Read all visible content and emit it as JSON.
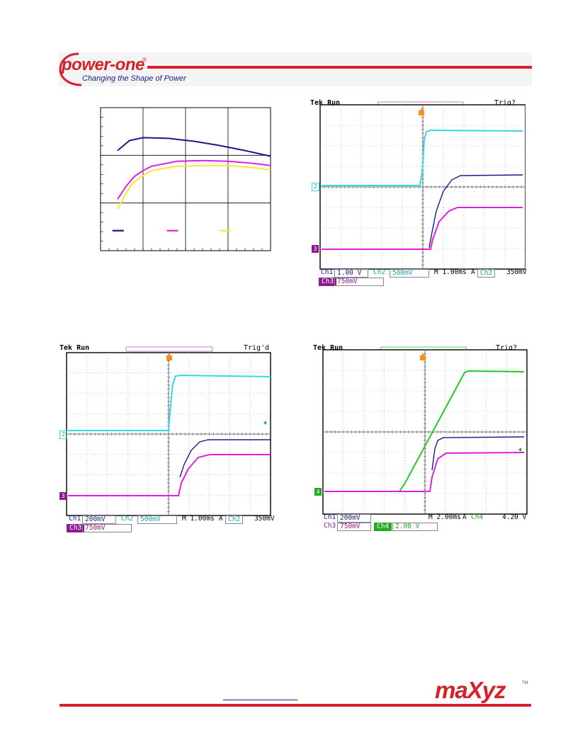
{
  "header": {
    "brand": "power-one",
    "registered": "®",
    "tagline": "Changing the Shape of Power"
  },
  "colors": {
    "red": "#d6202a",
    "ch1": "#1a1a8c",
    "ch2": "#33d9e6",
    "ch3": "#e020e0",
    "ch4": "#22cc22",
    "yellow": "#f4ea2a",
    "trigger": "#ff8c1a"
  },
  "chart_data": {
    "type": "line",
    "title": "",
    "xlabel": "",
    "ylabel": "",
    "xlim": [
      0,
      100
    ],
    "ylim": [
      0,
      100
    ],
    "grid": true,
    "series": [
      {
        "color": "#1a1a8c",
        "x": [
          10,
          17,
          25,
          40,
          55,
          70,
          85,
          100
        ],
        "y": [
          70,
          77,
          79,
          78.5,
          76.5,
          73.5,
          70,
          66
        ]
      },
      {
        "color": "#e020e0",
        "x": [
          10,
          15,
          20,
          25,
          30,
          45,
          60,
          75,
          90,
          100
        ],
        "y": [
          36,
          45,
          52,
          56,
          59,
          62.5,
          63,
          62.5,
          61,
          59.5
        ]
      },
      {
        "color": "#f4ea2a",
        "x": [
          10,
          14,
          18,
          23,
          30,
          45,
          60,
          75,
          90,
          100
        ],
        "y": [
          29,
          38,
          46,
          51,
          56,
          59,
          59.5,
          59.5,
          58,
          56.5
        ]
      }
    ]
  },
  "scopes": [
    {
      "status": "Tek Run",
      "trig": "Trig?",
      "markers": [
        "2",
        "3"
      ],
      "settings_row1": [
        "Ch1",
        "1.00 V",
        "Ch2",
        "500mV",
        "M 1.00ms",
        "A",
        "Ch2",
        "350mV"
      ],
      "settings_row2": [
        "Ch3",
        "750mV"
      ]
    },
    {
      "status": "Tek Run",
      "trig": "Trig'd",
      "markers": [
        "2",
        "3"
      ],
      "settings_row1": [
        "Ch1",
        "200mV",
        "Ch2",
        "500mV",
        "M 1.00ms",
        "A",
        "Ch2",
        "350mV"
      ],
      "settings_row2": [
        "Ch3",
        "750mV"
      ]
    },
    {
      "status": "Tek Run",
      "trig": "Trig?",
      "markers": [
        "4"
      ],
      "settings_row1": [
        "Ch1",
        "200mV",
        "M 2.00ms",
        "A",
        "Ch4",
        "4.20 V"
      ],
      "settings_row2": [
        "Ch3",
        "750mV",
        "Ch4",
        "2.00 V"
      ]
    }
  ],
  "footer": {
    "logo": "maXyz",
    "trademark": "TM"
  }
}
